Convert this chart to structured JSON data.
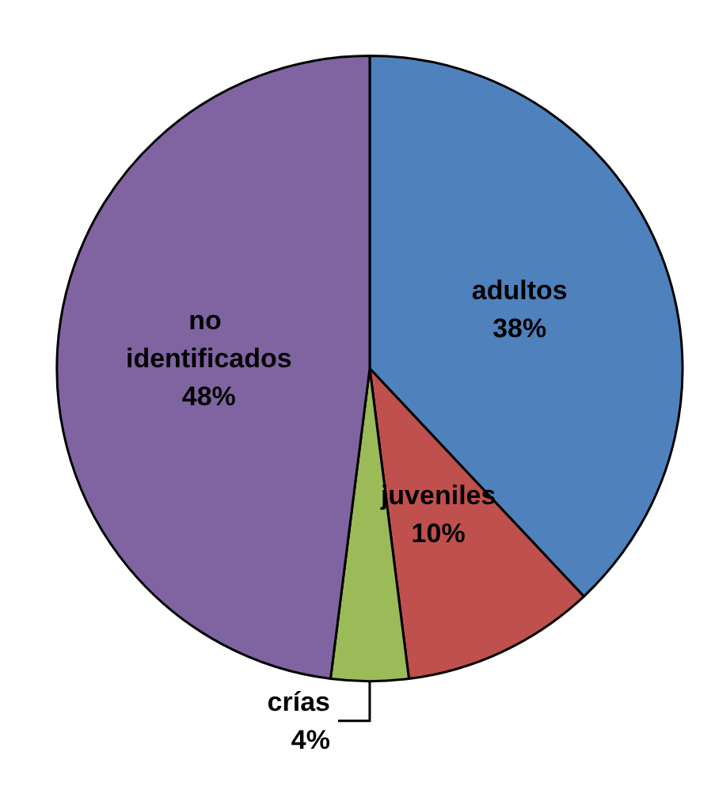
{
  "chart_data": {
    "type": "pie",
    "categories": [
      "adultos",
      "juveniles",
      "crías",
      "no identificados"
    ],
    "values": [
      38,
      10,
      4,
      48
    ],
    "value_labels": [
      "38%",
      "10%",
      "4%",
      "48%"
    ],
    "colors": [
      "#4f81bd",
      "#c0504d",
      "#9bbb59",
      "#8064a2"
    ],
    "legend": false
  }
}
